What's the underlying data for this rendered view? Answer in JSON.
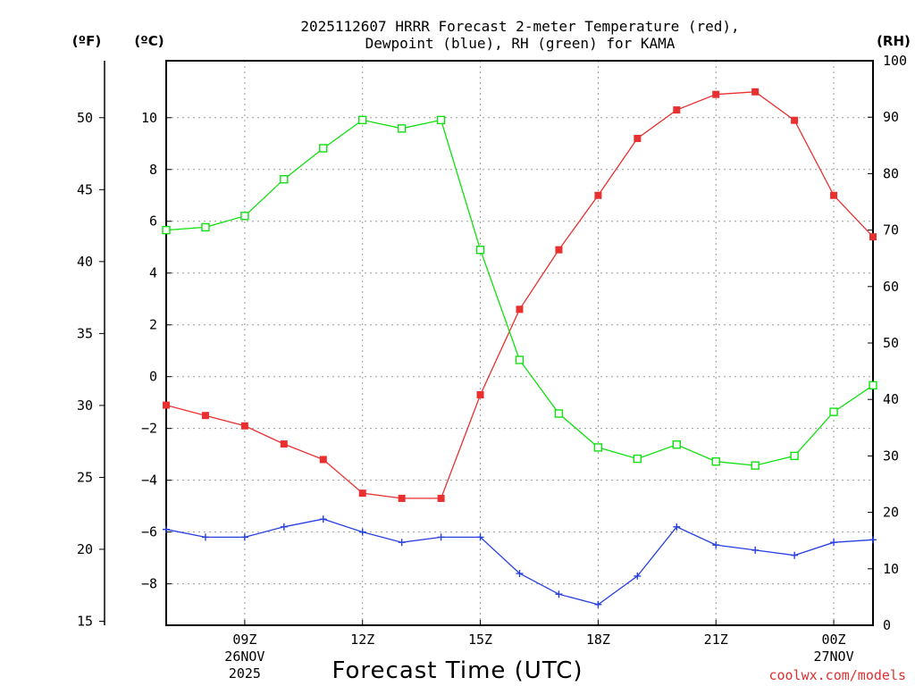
{
  "chart_data": {
    "type": "line",
    "station": "KAMA",
    "title_line1": "2025112607 HRRR Forecast 2-meter Temperature (red),",
    "title_line2": "Dewpoint (blue), RH (green) for KAMA",
    "xlabel": "Forecast Time (UTC)",
    "credit": "coolwx.com/models",
    "x": [
      "07Z",
      "08Z",
      "09Z",
      "10Z",
      "11Z",
      "12Z",
      "13Z",
      "14Z",
      "15Z",
      "16Z",
      "17Z",
      "18Z",
      "19Z",
      "20Z",
      "21Z",
      "22Z",
      "23Z",
      "00Z",
      "01Z"
    ],
    "x_ticks": [
      {
        "index": 2,
        "label": "09Z",
        "sub1": "26NOV",
        "sub2": "2025"
      },
      {
        "index": 5,
        "label": "12Z",
        "sub1": "",
        "sub2": ""
      },
      {
        "index": 8,
        "label": "15Z",
        "sub1": "",
        "sub2": ""
      },
      {
        "index": 11,
        "label": "18Z",
        "sub1": "",
        "sub2": ""
      },
      {
        "index": 14,
        "label": "21Z",
        "sub1": "",
        "sub2": ""
      },
      {
        "index": 17,
        "label": "00Z",
        "sub1": "27NOV",
        "sub2": ""
      }
    ],
    "axes": {
      "celsius": {
        "label": "(ºC)",
        "ylim": [
          -9.6,
          12.2
        ],
        "ticks": [
          10,
          8,
          6,
          4,
          2,
          0,
          -2,
          -4,
          -6,
          -8
        ]
      },
      "fahrenheit": {
        "label": "(ºF)",
        "ticks": [
          50,
          45,
          40,
          35,
          30,
          25,
          20,
          15
        ]
      },
      "rh": {
        "label": "(RH)",
        "ylim": [
          0,
          100
        ],
        "ticks": [
          100,
          90,
          80,
          70,
          60,
          50,
          40,
          30,
          20,
          10,
          0
        ]
      }
    },
    "series": [
      {
        "name": "Temperature",
        "axis": "celsius",
        "color": "#e83030",
        "marker": "filled-square",
        "values": [
          -1.1,
          -1.5,
          -1.9,
          -2.6,
          -3.2,
          -4.5,
          -4.7,
          -4.7,
          -0.7,
          2.6,
          4.9,
          7.0,
          9.2,
          10.3,
          10.9,
          11.0,
          9.9,
          7.0,
          5.4
        ]
      },
      {
        "name": "Dewpoint",
        "axis": "celsius",
        "color": "#2840e0",
        "marker": "plus",
        "values": [
          -5.9,
          -6.2,
          -6.2,
          -5.8,
          -5.5,
          -6.0,
          -6.4,
          -6.2,
          -6.2,
          -7.6,
          -8.4,
          -8.8,
          -7.7,
          -5.8,
          -6.5,
          -6.7,
          -6.9,
          -6.4,
          -6.3
        ]
      },
      {
        "name": "RH",
        "axis": "rh",
        "color": "#10e010",
        "marker": "open-square",
        "values": [
          70,
          70.5,
          72.5,
          79,
          84.5,
          89.5,
          88,
          89.5,
          66.5,
          47,
          37.5,
          31.5,
          29.5,
          32,
          29,
          28.3,
          30,
          37.8,
          42.5
        ]
      }
    ]
  }
}
